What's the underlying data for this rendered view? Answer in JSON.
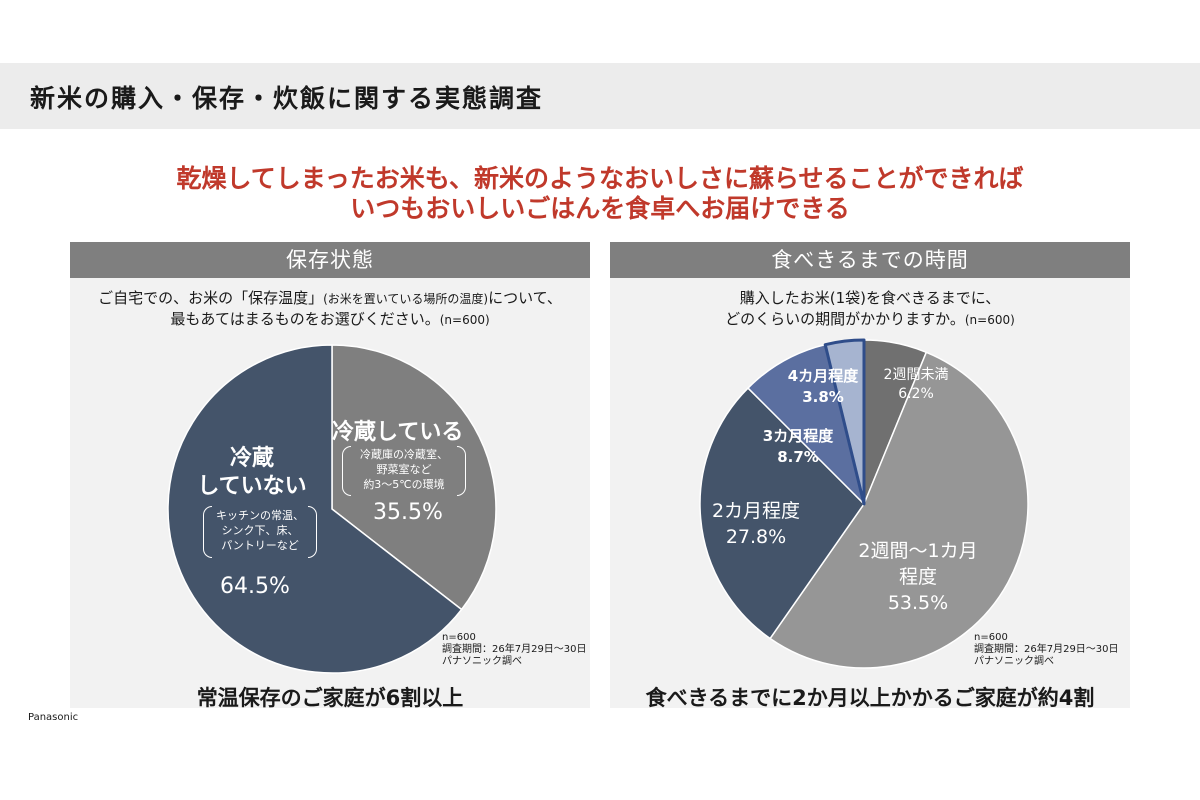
{
  "header": {
    "title": "新米の購入・保存・炊飯に関する実態調査"
  },
  "headline": {
    "line1": "乾燥してしまったお米も、新米のようなおいしさに蘇らせることができれば",
    "line2": "いつもおいしいごはんを食卓へお届けできる"
  },
  "left_panel": {
    "title": "保存状態",
    "question_line1_a": "ご自宅での、お米の「保存温度」",
    "question_line1_small": "(お米を置いている場所の温度)",
    "question_line1_b": "について、",
    "question_line2": "最もあてはまるものをお選びください。",
    "question_n": "(n=600)",
    "slice_labels": {
      "refrigerated_title": "冷蔵している",
      "refrigerated_detail1": "冷蔵庫の冷蔵室、",
      "refrigerated_detail2": "野菜室など",
      "refrigerated_detail3": "約3～5℃の環境",
      "refrigerated_value": "35.5%",
      "not_refrigerated_title1": "冷蔵",
      "not_refrigerated_title2": "していない",
      "not_refrigerated_detail1": "キッチンの常温、",
      "not_refrigerated_detail2": "シンク下、床、",
      "not_refrigerated_detail3": "パントリーなど",
      "not_refrigerated_value": "64.5%"
    },
    "note": {
      "n": "n=600",
      "period": "調査期間：26年7月29日～30日",
      "source": "パナソニック調べ"
    },
    "summary": "常温保存のご家庭が6割以上"
  },
  "right_panel": {
    "title": "食べきるまでの時間",
    "question_line1": "購入したお米(1袋)を食べきるまでに、",
    "question_line2": "どのくらいの期間がかかりますか。",
    "question_n": "(n=600)",
    "slice_labels": {
      "s1_name": "2週間未満",
      "s1_value": "6.2%",
      "s2_name1": "2週間～1カ月",
      "s2_name2": "程度",
      "s2_value": "53.5%",
      "s3_name": "2カ月程度",
      "s3_value": "27.8%",
      "s4_name": "3カ月程度",
      "s4_value": "8.7%",
      "s5_name": "4カ月程度",
      "s5_value": "3.8%"
    },
    "note": {
      "n": "n=600",
      "period": "調査期間：26年7月29日～30日",
      "source": "パナソニック調べ"
    },
    "summary": "食べきるまでに2か月以上かかるご家庭が約4割"
  },
  "footer": {
    "logo": "Panasonic"
  },
  "chart_data": [
    {
      "type": "pie",
      "title": "保存状態",
      "categories": [
        "冷蔵している",
        "冷蔵していない"
      ],
      "values": [
        35.5,
        64.5
      ],
      "colors": [
        "#7f7f7f",
        "#44546a"
      ]
    },
    {
      "type": "pie",
      "title": "食べきるまでの時間",
      "categories": [
        "2週間未満",
        "2週間～1カ月程度",
        "2カ月程度",
        "3カ月程度",
        "4カ月程度"
      ],
      "values": [
        6.2,
        53.5,
        27.8,
        8.7,
        3.8
      ],
      "colors": [
        "#707070",
        "#969696",
        "#44546a",
        "#5b6fa0",
        "#a6b4d0"
      ]
    }
  ]
}
